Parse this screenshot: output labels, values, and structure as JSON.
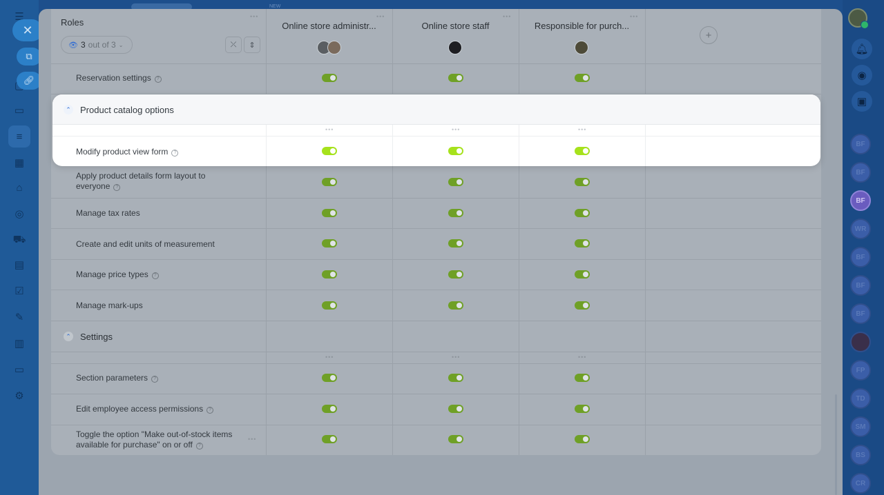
{
  "header": {
    "roles_title": "Roles",
    "filter_count": "3",
    "filter_suffix": "out of 3",
    "columns": [
      "Online store administr...",
      "Online store staff",
      "Responsible for purch..."
    ],
    "add_label": "+"
  },
  "top_tag": "NEW",
  "rows_before": [
    {
      "label": "Reservation settings",
      "help": true,
      "enabled": [
        true,
        true,
        true
      ]
    }
  ],
  "section_catalog": {
    "title": "Product catalog options",
    "rows": [
      {
        "label": "Modify product view form",
        "help": true,
        "enabled": [
          true,
          true,
          true
        ]
      },
      {
        "label_line1": "Apply product details form layout to",
        "label_line2": "everyone",
        "help": true,
        "enabled": [
          true,
          true,
          true
        ]
      },
      {
        "label": "Manage tax rates",
        "help": false,
        "enabled": [
          true,
          true,
          true
        ]
      },
      {
        "label": "Create and edit units of measurement",
        "help": false,
        "enabled": [
          true,
          true,
          true
        ]
      },
      {
        "label": "Manage price types",
        "help": true,
        "enabled": [
          true,
          true,
          true
        ]
      },
      {
        "label": "Manage mark-ups",
        "help": false,
        "enabled": [
          true,
          true,
          true
        ]
      }
    ]
  },
  "section_settings": {
    "title": "Settings",
    "rows": [
      {
        "label": "Section parameters",
        "help": true,
        "enabled": [
          true,
          true,
          true
        ]
      },
      {
        "label": "Edit employee access permissions",
        "help": true,
        "enabled": [
          true,
          true,
          true
        ]
      },
      {
        "label_line1": "Toggle the option \"Make out-of-stock items",
        "label_line2": "available for purchase\" on or off",
        "help": true,
        "enabled": [
          true,
          true,
          true
        ]
      }
    ]
  },
  "right_bar": {
    "avatars": [
      "BF",
      "BF",
      "BF",
      "WR",
      "BF",
      "BF",
      "BF",
      "",
      "FP",
      "TD",
      "SM",
      "BS",
      "CR"
    ]
  },
  "colors": {
    "toggle_on": "#a6e21c",
    "accent_blue": "#2d6bd4"
  },
  "icons": {
    "menu": "hamburger-icon",
    "close": "close-icon",
    "eye": "eye-icon",
    "collapse": "collapse-icon",
    "expand": "expand-icon",
    "chevron": "chevron-up-icon",
    "bell": "bell-icon",
    "help": "help-icon"
  }
}
